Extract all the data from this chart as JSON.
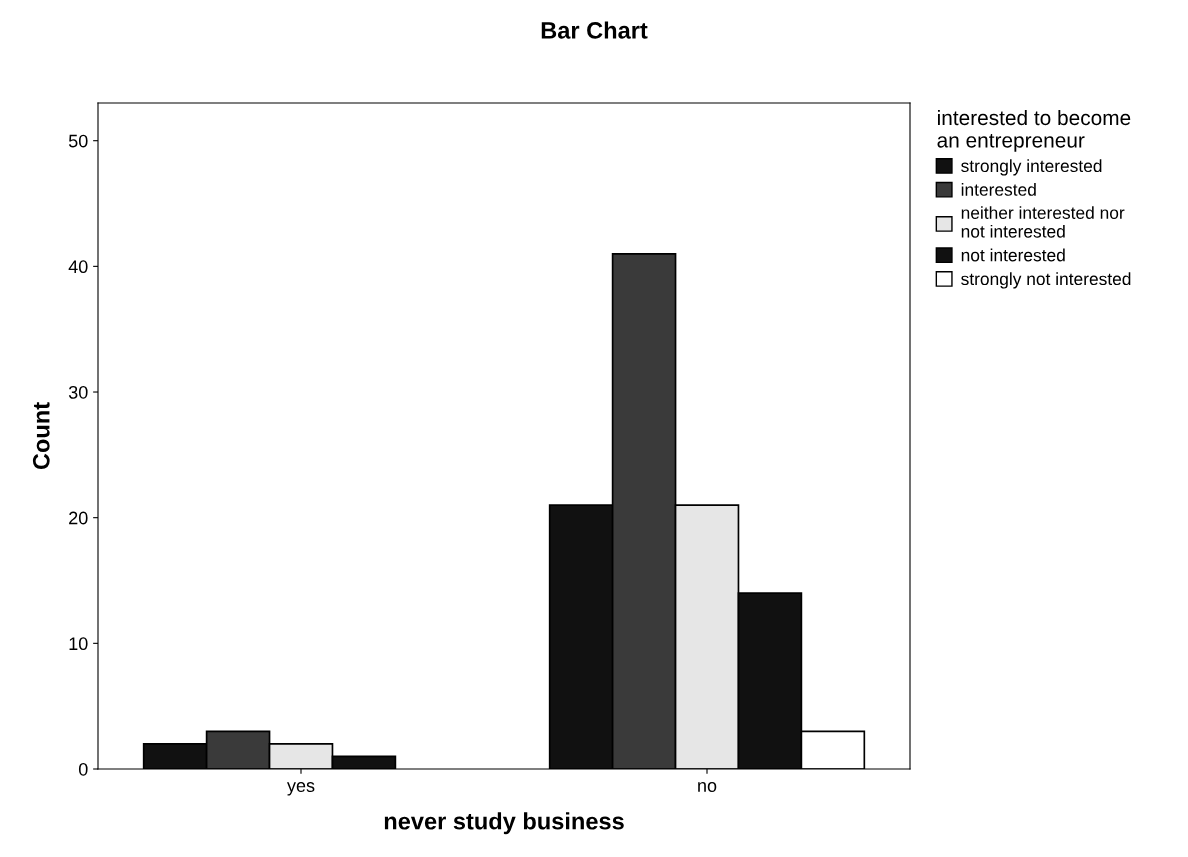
{
  "chart_data": {
    "type": "bar",
    "title": "Bar Chart",
    "xlabel": "never study business",
    "ylabel": "Count",
    "legend_title": "interested to become\nan entrepreneur",
    "legend": "right",
    "categories": [
      "yes",
      "no"
    ],
    "series": [
      {
        "name": "strongly interested",
        "color": "#111111",
        "values": [
          2,
          21
        ]
      },
      {
        "name": "interested",
        "color": "#3a3a3a",
        "values": [
          3,
          41
        ]
      },
      {
        "name": "neither interested nor\nnot interested",
        "color": "#e6e6e6",
        "values": [
          2,
          21
        ]
      },
      {
        "name": "not interested",
        "color": "#111111",
        "values": [
          1,
          14
        ]
      },
      {
        "name": "strongly not interested",
        "color": "#ffffff",
        "values": [
          null,
          3
        ]
      }
    ],
    "ylim": [
      0,
      53
    ],
    "yticks": [
      0,
      10,
      20,
      30,
      40,
      50
    ],
    "grid": false
  }
}
